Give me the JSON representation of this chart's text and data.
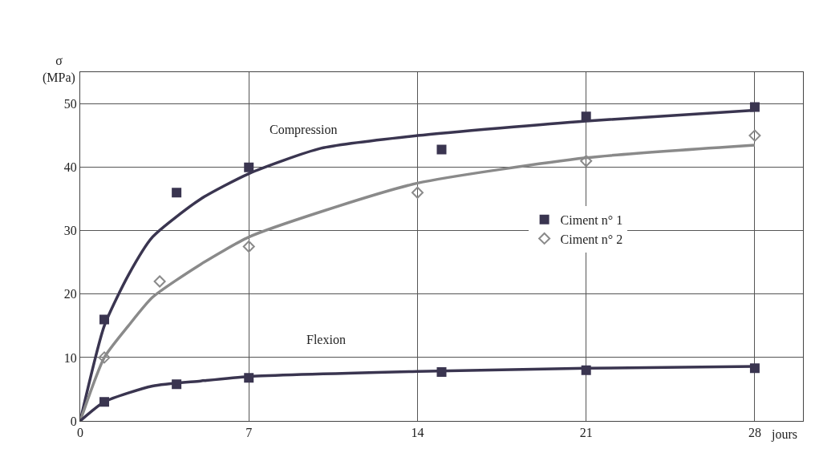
{
  "chart_data": {
    "type": "line",
    "ylabel": "σ\n(MPa)",
    "xlabel": "jours",
    "xlim": [
      0,
      30
    ],
    "ylim": [
      0,
      55
    ],
    "xticks": [
      0,
      7,
      14,
      21,
      28
    ],
    "yticks": [
      0,
      10,
      20,
      30,
      40,
      50
    ],
    "grid": true,
    "legend": "right",
    "line_style": "solid",
    "annotations": [
      "Compression",
      "Flexion"
    ],
    "series": [
      {
        "name": "Ciment n° 1",
        "type": "scatter",
        "marker": "square",
        "color": "#3a3550",
        "x": [
          1,
          4,
          7,
          15,
          21,
          28
        ],
        "values": [
          16,
          36,
          40,
          42.8,
          48,
          49.5
        ]
      },
      {
        "name": "Ciment n° 2",
        "type": "scatter",
        "marker": "diamond",
        "color": "#8a8a8a",
        "x": [
          1,
          3.3,
          7,
          14,
          21,
          28
        ],
        "values": [
          10,
          22,
          27.5,
          36,
          41,
          45
        ]
      },
      {
        "type": "scatter",
        "marker": "square",
        "color": "#3a3550",
        "x": [
          1,
          4,
          7,
          15,
          21,
          28
        ],
        "values": [
          3,
          5.8,
          6.8,
          7.7,
          8,
          8.3
        ]
      },
      {
        "type": "line",
        "marker": "none",
        "color": "#3a3550",
        "x": [
          0,
          1,
          2,
          3,
          5,
          7,
          10,
          14,
          21,
          28
        ],
        "values": [
          0,
          15,
          23,
          29,
          35,
          39,
          43,
          45,
          47.3,
          49
        ]
      },
      {
        "type": "line",
        "marker": "none",
        "color": "#8a8a8a",
        "x": [
          0,
          1,
          2,
          3,
          5,
          7,
          10,
          14,
          21,
          28
        ],
        "values": [
          0,
          10,
          15,
          19.5,
          24.7,
          29,
          33,
          37.5,
          41.5,
          43.5
        ]
      },
      {
        "type": "line",
        "marker": "none",
        "color": "#3a3550",
        "x": [
          0,
          1,
          3,
          5,
          7,
          14,
          21,
          28
        ],
        "values": [
          0,
          3,
          5.5,
          6.3,
          7,
          7.8,
          8.3,
          8.6
        ]
      }
    ]
  }
}
